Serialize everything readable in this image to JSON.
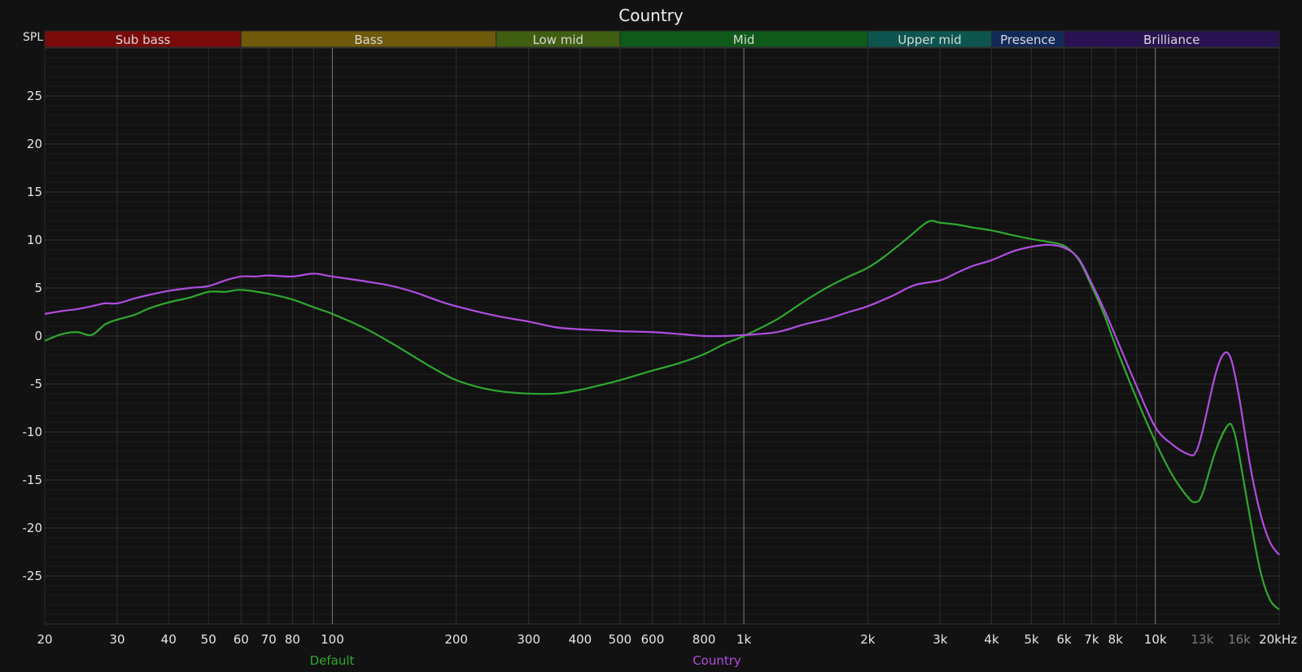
{
  "chart_data": {
    "type": "line",
    "title": "Country",
    "ylabel": "SPL",
    "x_scale": "log",
    "xlim": [
      20,
      20000
    ],
    "ylim": [
      -30,
      30
    ],
    "y_ticks": [
      25,
      20,
      15,
      10,
      5,
      0,
      -5,
      -10,
      -15,
      -20,
      -25
    ],
    "x_ticks": [
      {
        "v": 20,
        "label": "20"
      },
      {
        "v": 30,
        "label": "30"
      },
      {
        "v": 40,
        "label": "40"
      },
      {
        "v": 50,
        "label": "50"
      },
      {
        "v": 60,
        "label": "60"
      },
      {
        "v": 70,
        "label": "70"
      },
      {
        "v": 80,
        "label": "80"
      },
      {
        "v": 100,
        "label": "100"
      },
      {
        "v": 200,
        "label": "200"
      },
      {
        "v": 300,
        "label": "300"
      },
      {
        "v": 400,
        "label": "400"
      },
      {
        "v": 500,
        "label": "500"
      },
      {
        "v": 600,
        "label": "600"
      },
      {
        "v": 800,
        "label": "800"
      },
      {
        "v": 1000,
        "label": "1k"
      },
      {
        "v": 2000,
        "label": "2k"
      },
      {
        "v": 3000,
        "label": "3k"
      },
      {
        "v": 4000,
        "label": "4k"
      },
      {
        "v": 5000,
        "label": "5k"
      },
      {
        "v": 6000,
        "label": "6k"
      },
      {
        "v": 7000,
        "label": "7k"
      },
      {
        "v": 8000,
        "label": "8k"
      },
      {
        "v": 10000,
        "label": "10k"
      },
      {
        "v": 13000,
        "label": "13k",
        "dim": true
      },
      {
        "v": 16000,
        "label": "16k",
        "dim": true
      },
      {
        "v": 20000,
        "label": "20kHz"
      }
    ],
    "bands": [
      {
        "name": "Sub bass",
        "from": 20,
        "to": 60,
        "color": "#7a0a0a"
      },
      {
        "name": "Bass",
        "from": 60,
        "to": 250,
        "color": "#6e5a0a"
      },
      {
        "name": "Low mid",
        "from": 250,
        "to": 500,
        "color": "#3f5e12"
      },
      {
        "name": "Mid",
        "from": 500,
        "to": 2000,
        "color": "#0f5a1a"
      },
      {
        "name": "Upper mid",
        "from": 2000,
        "to": 4000,
        "color": "#0d5650"
      },
      {
        "name": "Presence",
        "from": 4000,
        "to": 6000,
        "color": "#122a5a"
      },
      {
        "name": "Brilliance",
        "from": 6000,
        "to": 20000,
        "color": "#281250"
      }
    ],
    "series": [
      {
        "name": "Default",
        "color": "#2fa82f",
        "points": [
          [
            20,
            -0.5
          ],
          [
            22,
            0.2
          ],
          [
            24,
            0.4
          ],
          [
            26,
            0.1
          ],
          [
            28,
            1.2
          ],
          [
            30,
            1.7
          ],
          [
            33,
            2.2
          ],
          [
            36,
            2.9
          ],
          [
            40,
            3.5
          ],
          [
            45,
            4.0
          ],
          [
            50,
            4.6
          ],
          [
            55,
            4.6
          ],
          [
            60,
            4.8
          ],
          [
            70,
            4.4
          ],
          [
            80,
            3.8
          ],
          [
            90,
            3.0
          ],
          [
            100,
            2.3
          ],
          [
            120,
            0.8
          ],
          [
            140,
            -0.8
          ],
          [
            160,
            -2.3
          ],
          [
            180,
            -3.6
          ],
          [
            200,
            -4.6
          ],
          [
            230,
            -5.4
          ],
          [
            260,
            -5.8
          ],
          [
            300,
            -6.0
          ],
          [
            350,
            -6.0
          ],
          [
            400,
            -5.6
          ],
          [
            450,
            -5.1
          ],
          [
            500,
            -4.6
          ],
          [
            600,
            -3.6
          ],
          [
            700,
            -2.8
          ],
          [
            800,
            -1.9
          ],
          [
            900,
            -0.8
          ],
          [
            1000,
            0.0
          ],
          [
            1200,
            1.7
          ],
          [
            1400,
            3.6
          ],
          [
            1600,
            5.1
          ],
          [
            1800,
            6.2
          ],
          [
            2000,
            7.1
          ],
          [
            2200,
            8.3
          ],
          [
            2500,
            10.2
          ],
          [
            2800,
            11.9
          ],
          [
            3000,
            11.8
          ],
          [
            3300,
            11.6
          ],
          [
            3600,
            11.3
          ],
          [
            4000,
            11.0
          ],
          [
            4500,
            10.5
          ],
          [
            5000,
            10.1
          ],
          [
            5500,
            9.8
          ],
          [
            6000,
            9.4
          ],
          [
            6500,
            8.0
          ],
          [
            7000,
            5.2
          ],
          [
            7500,
            2.3
          ],
          [
            8000,
            -1.0
          ],
          [
            9000,
            -6.5
          ],
          [
            10000,
            -11.0
          ],
          [
            11000,
            -14.5
          ],
          [
            12000,
            -16.8
          ],
          [
            12500,
            -17.3
          ],
          [
            13000,
            -16.5
          ],
          [
            14000,
            -12.0
          ],
          [
            15000,
            -9.3
          ],
          [
            15500,
            -9.8
          ],
          [
            16000,
            -12.5
          ],
          [
            17000,
            -19.0
          ],
          [
            18000,
            -24.5
          ],
          [
            19000,
            -27.5
          ],
          [
            20000,
            -28.5
          ]
        ]
      },
      {
        "name": "Country",
        "color": "#b04de0",
        "points": [
          [
            20,
            2.3
          ],
          [
            22,
            2.6
          ],
          [
            24,
            2.8
          ],
          [
            26,
            3.1
          ],
          [
            28,
            3.4
          ],
          [
            30,
            3.4
          ],
          [
            33,
            3.9
          ],
          [
            36,
            4.3
          ],
          [
            40,
            4.7
          ],
          [
            45,
            5.0
          ],
          [
            50,
            5.2
          ],
          [
            55,
            5.8
          ],
          [
            60,
            6.2
          ],
          [
            65,
            6.2
          ],
          [
            70,
            6.3
          ],
          [
            80,
            6.2
          ],
          [
            90,
            6.5
          ],
          [
            100,
            6.2
          ],
          [
            120,
            5.7
          ],
          [
            140,
            5.2
          ],
          [
            160,
            4.5
          ],
          [
            180,
            3.7
          ],
          [
            200,
            3.1
          ],
          [
            250,
            2.1
          ],
          [
            300,
            1.5
          ],
          [
            350,
            0.9
          ],
          [
            400,
            0.7
          ],
          [
            450,
            0.6
          ],
          [
            500,
            0.5
          ],
          [
            600,
            0.4
          ],
          [
            700,
            0.2
          ],
          [
            800,
            0.0
          ],
          [
            900,
            0.0
          ],
          [
            1000,
            0.1
          ],
          [
            1200,
            0.4
          ],
          [
            1400,
            1.2
          ],
          [
            1600,
            1.8
          ],
          [
            1800,
            2.5
          ],
          [
            2000,
            3.1
          ],
          [
            2300,
            4.2
          ],
          [
            2600,
            5.3
          ],
          [
            3000,
            5.8
          ],
          [
            3300,
            6.6
          ],
          [
            3600,
            7.3
          ],
          [
            4000,
            7.9
          ],
          [
            4500,
            8.8
          ],
          [
            5000,
            9.3
          ],
          [
            5500,
            9.5
          ],
          [
            6000,
            9.2
          ],
          [
            6500,
            8.1
          ],
          [
            7000,
            5.5
          ],
          [
            7500,
            2.8
          ],
          [
            8000,
            0.0
          ],
          [
            9000,
            -5.2
          ],
          [
            10000,
            -9.5
          ],
          [
            11000,
            -11.3
          ],
          [
            12000,
            -12.3
          ],
          [
            12500,
            -12.2
          ],
          [
            13000,
            -10.0
          ],
          [
            14000,
            -4.0
          ],
          [
            14700,
            -1.8
          ],
          [
            15300,
            -2.5
          ],
          [
            16000,
            -6.5
          ],
          [
            17000,
            -13.5
          ],
          [
            18000,
            -18.5
          ],
          [
            19000,
            -21.5
          ],
          [
            20000,
            -22.8
          ]
        ]
      }
    ]
  }
}
